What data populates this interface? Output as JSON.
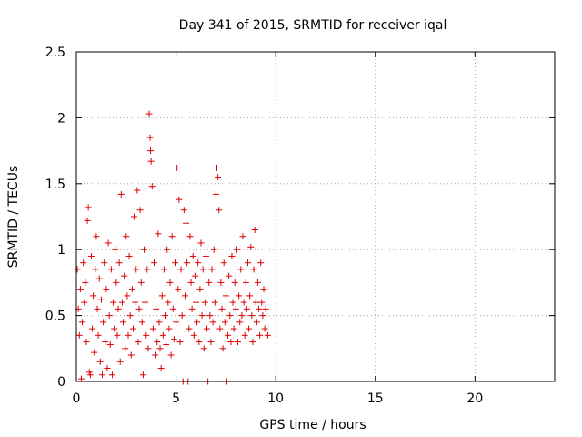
{
  "chart_data": {
    "type": "scatter",
    "title": "Day 341 of 2015, SRMTID for receiver iqal",
    "xlabel": "GPS time / hours",
    "ylabel": "SRMTID / TECUs",
    "xlim": [
      0,
      24
    ],
    "ylim": [
      0,
      2.5
    ],
    "xticks": [
      0,
      5,
      10,
      15,
      20
    ],
    "xtick_labels": [
      "0",
      "5",
      "10",
      "15",
      "20"
    ],
    "yticks": [
      0,
      0.5,
      1,
      1.5,
      2,
      2.5
    ],
    "ytick_labels": [
      "0",
      "0.5",
      "1",
      "1.5",
      "2",
      "2.5"
    ],
    "grid": true,
    "marker": "+",
    "series": [
      {
        "name": "SRMTID",
        "color": "#e00000",
        "data_range": {
          "x": [
            0,
            9.6
          ],
          "y": [
            0,
            2.03
          ]
        },
        "points": [
          [
            0.05,
            0.85
          ],
          [
            0.1,
            0.55
          ],
          [
            0.15,
            0.35
          ],
          [
            0.2,
            0.7
          ],
          [
            0.25,
            0.02
          ],
          [
            0.3,
            0.45
          ],
          [
            0.35,
            0.9
          ],
          [
            0.4,
            0.6
          ],
          [
            0.45,
            0.75
          ],
          [
            0.5,
            0.3
          ],
          [
            0.55,
            1.22
          ],
          [
            0.6,
            1.32
          ],
          [
            0.65,
            0.07
          ],
          [
            0.7,
            0.05
          ],
          [
            0.75,
            0.95
          ],
          [
            0.8,
            0.4
          ],
          [
            0.85,
            0.65
          ],
          [
            0.9,
            0.22
          ],
          [
            0.95,
            0.85
          ],
          [
            1.0,
            1.1
          ],
          [
            1.05,
            0.55
          ],
          [
            1.1,
            0.35
          ],
          [
            1.15,
            0.78
          ],
          [
            1.2,
            0.15
          ],
          [
            1.25,
            0.62
          ],
          [
            1.3,
            0.05
          ],
          [
            1.35,
            0.45
          ],
          [
            1.4,
            0.9
          ],
          [
            1.45,
            0.3
          ],
          [
            1.5,
            0.7
          ],
          [
            1.55,
            0.1
          ],
          [
            1.6,
            1.05
          ],
          [
            1.65,
            0.5
          ],
          [
            1.7,
            0.28
          ],
          [
            1.75,
            0.85
          ],
          [
            1.8,
            0.05
          ],
          [
            1.85,
            0.6
          ],
          [
            1.9,
            0.4
          ],
          [
            1.95,
            1.0
          ],
          [
            2.0,
            0.75
          ],
          [
            2.05,
            0.35
          ],
          [
            2.1,
            0.55
          ],
          [
            2.15,
            0.9
          ],
          [
            2.2,
            0.15
          ],
          [
            2.25,
            1.42
          ],
          [
            2.3,
            0.6
          ],
          [
            2.35,
            0.45
          ],
          [
            2.4,
            0.8
          ],
          [
            2.45,
            0.25
          ],
          [
            2.5,
            1.1
          ],
          [
            2.55,
            0.65
          ],
          [
            2.6,
            0.35
          ],
          [
            2.65,
            0.95
          ],
          [
            2.7,
            0.5
          ],
          [
            2.75,
            0.2
          ],
          [
            2.8,
            0.7
          ],
          [
            2.85,
            0.4
          ],
          [
            2.9,
            1.25
          ],
          [
            2.95,
            0.6
          ],
          [
            3.0,
            0.85
          ],
          [
            3.05,
            1.45
          ],
          [
            3.1,
            0.3
          ],
          [
            3.15,
            0.55
          ],
          [
            3.2,
            1.3
          ],
          [
            3.25,
            0.75
          ],
          [
            3.3,
            0.45
          ],
          [
            3.35,
            0.05
          ],
          [
            3.4,
            1.0
          ],
          [
            3.45,
            0.6
          ],
          [
            3.5,
            0.35
          ],
          [
            3.55,
            0.85
          ],
          [
            3.6,
            0.25
          ],
          [
            3.65,
            2.03
          ],
          [
            3.7,
            1.85
          ],
          [
            3.72,
            1.75
          ],
          [
            3.75,
            1.67
          ],
          [
            3.8,
            1.48
          ],
          [
            3.85,
            0.4
          ],
          [
            3.9,
            0.9
          ],
          [
            3.95,
            0.2
          ],
          [
            4.0,
            0.55
          ],
          [
            4.05,
            0.3
          ],
          [
            4.1,
            1.12
          ],
          [
            4.15,
            0.45
          ],
          [
            4.2,
            0.25
          ],
          [
            4.25,
            0.1
          ],
          [
            4.3,
            0.65
          ],
          [
            4.35,
            0.35
          ],
          [
            4.4,
            0.85
          ],
          [
            4.45,
            0.5
          ],
          [
            4.5,
            0.28
          ],
          [
            4.55,
            1.0
          ],
          [
            4.6,
            0.6
          ],
          [
            4.65,
            0.4
          ],
          [
            4.7,
            0.75
          ],
          [
            4.75,
            0.2
          ],
          [
            4.8,
            1.1
          ],
          [
            4.85,
            0.55
          ],
          [
            4.9,
            0.32
          ],
          [
            4.95,
            0.9
          ],
          [
            5.0,
            0.45
          ],
          [
            5.05,
            1.62
          ],
          [
            5.1,
            0.7
          ],
          [
            5.15,
            1.38
          ],
          [
            5.2,
            0.3
          ],
          [
            5.25,
            0.85
          ],
          [
            5.3,
            0.5
          ],
          [
            5.35,
            0.0
          ],
          [
            5.4,
            1.3
          ],
          [
            5.45,
            0.65
          ],
          [
            5.5,
            1.2
          ],
          [
            5.55,
            0.9
          ],
          [
            5.6,
            0.0
          ],
          [
            5.65,
            0.4
          ],
          [
            5.7,
            1.1
          ],
          [
            5.75,
            0.75
          ],
          [
            5.8,
            0.55
          ],
          [
            5.85,
            0.95
          ],
          [
            5.9,
            0.35
          ],
          [
            5.95,
            0.8
          ],
          [
            6.0,
            0.6
          ],
          [
            6.05,
            0.45
          ],
          [
            6.1,
            0.9
          ],
          [
            6.15,
            0.3
          ],
          [
            6.2,
            0.7
          ],
          [
            6.25,
            1.05
          ],
          [
            6.3,
            0.5
          ],
          [
            6.35,
            0.85
          ],
          [
            6.4,
            0.25
          ],
          [
            6.45,
            0.6
          ],
          [
            6.5,
            0.95
          ],
          [
            6.55,
            0.4
          ],
          [
            6.6,
            0.0
          ],
          [
            6.65,
            0.75
          ],
          [
            6.7,
            0.5
          ],
          [
            6.75,
            0.3
          ],
          [
            6.8,
            0.85
          ],
          [
            6.85,
            0.45
          ],
          [
            6.9,
            1.0
          ],
          [
            6.95,
            0.6
          ],
          [
            7.0,
            1.42
          ],
          [
            7.05,
            1.62
          ],
          [
            7.1,
            1.55
          ],
          [
            7.15,
            1.3
          ],
          [
            7.2,
            0.4
          ],
          [
            7.25,
            0.75
          ],
          [
            7.3,
            0.55
          ],
          [
            7.35,
            0.25
          ],
          [
            7.4,
            0.9
          ],
          [
            7.45,
            0.45
          ],
          [
            7.5,
            0.65
          ],
          [
            7.55,
            0.0
          ],
          [
            7.6,
            0.35
          ],
          [
            7.65,
            0.8
          ],
          [
            7.7,
            0.5
          ],
          [
            7.75,
            0.3
          ],
          [
            7.8,
            0.95
          ],
          [
            7.85,
            0.6
          ],
          [
            7.9,
            0.4
          ],
          [
            7.95,
            0.75
          ],
          [
            8.0,
            0.55
          ],
          [
            8.05,
            1.0
          ],
          [
            8.1,
            0.3
          ],
          [
            8.15,
            0.65
          ],
          [
            8.2,
            0.45
          ],
          [
            8.25,
            0.85
          ],
          [
            8.3,
            0.5
          ],
          [
            8.35,
            1.1
          ],
          [
            8.4,
            0.6
          ],
          [
            8.45,
            0.35
          ],
          [
            8.5,
            0.75
          ],
          [
            8.55,
            0.55
          ],
          [
            8.6,
            0.9
          ],
          [
            8.65,
            0.4
          ],
          [
            8.7,
            0.65
          ],
          [
            8.75,
            1.02
          ],
          [
            8.8,
            0.5
          ],
          [
            8.85,
            0.3
          ],
          [
            8.9,
            0.85
          ],
          [
            8.95,
            1.15
          ],
          [
            9.0,
            0.6
          ],
          [
            9.05,
            0.45
          ],
          [
            9.1,
            0.75
          ],
          [
            9.15,
            0.55
          ],
          [
            9.2,
            0.35
          ],
          [
            9.25,
            0.9
          ],
          [
            9.3,
            0.6
          ],
          [
            9.35,
            0.5
          ],
          [
            9.4,
            0.7
          ],
          [
            9.45,
            0.4
          ],
          [
            9.5,
            0.55
          ],
          [
            9.6,
            0.35
          ]
        ]
      }
    ]
  }
}
